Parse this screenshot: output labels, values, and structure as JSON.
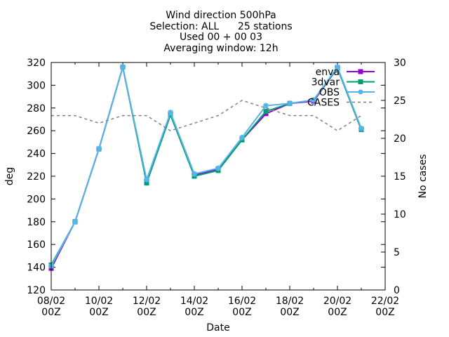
{
  "chart_data": {
    "type": "line",
    "title_lines": [
      "Wind direction 500hPa",
      "Selection: ALL      25 stations",
      "Used 00 + 00 03",
      "Averaging window: 12h"
    ],
    "xlabel": "Date",
    "ylabel": "deg",
    "y2label": "No cases",
    "x_unit": "days from 08/02 00Z",
    "xlim": [
      0,
      14
    ],
    "ylim": [
      120,
      320
    ],
    "y2lim": [
      0,
      30
    ],
    "x_ticks": [
      {
        "x": 0,
        "l1": "08/02",
        "l2": "00Z"
      },
      {
        "x": 2,
        "l1": "10/02",
        "l2": "00Z"
      },
      {
        "x": 4,
        "l1": "12/02",
        "l2": "00Z"
      },
      {
        "x": 6,
        "l1": "14/02",
        "l2": "00Z"
      },
      {
        "x": 8,
        "l1": "16/02",
        "l2": "00Z"
      },
      {
        "x": 10,
        "l1": "18/02",
        "l2": "00Z"
      },
      {
        "x": 12,
        "l1": "20/02",
        "l2": "00Z"
      },
      {
        "x": 14,
        "l1": "22/02",
        "l2": "00Z"
      }
    ],
    "y_ticks": [
      120,
      140,
      160,
      180,
      200,
      220,
      240,
      260,
      280,
      300,
      320
    ],
    "y2_ticks": [
      0,
      5,
      10,
      15,
      20,
      25,
      30
    ],
    "x": [
      0,
      1,
      2,
      3,
      4,
      5,
      6,
      7,
      8,
      9,
      10,
      11,
      12,
      13
    ],
    "series": [
      {
        "name": "enva",
        "color": "#9400d3",
        "marker": "square",
        "dashed": false,
        "axis": "y",
        "values": [
          139,
          180,
          244,
          316,
          215,
          274,
          221,
          226,
          252,
          275,
          284,
          286,
          315,
          261
        ]
      },
      {
        "name": "3dvar",
        "color": "#009e73",
        "marker": "square",
        "dashed": false,
        "axis": "y",
        "values": [
          142,
          180,
          244,
          316,
          214,
          274,
          220,
          225,
          252,
          277,
          284,
          287,
          315,
          261
        ]
      },
      {
        "name": "OBS",
        "color": "#56b4e9",
        "marker": "star",
        "dashed": false,
        "axis": "y",
        "values": [
          141,
          180,
          244,
          316,
          217,
          276,
          222,
          227,
          254,
          282,
          284,
          287,
          316,
          262
        ]
      },
      {
        "name": "CASES",
        "color": "#808080",
        "marker": "none",
        "dashed": true,
        "axis": "y2",
        "values": [
          23,
          23,
          22,
          23,
          23,
          21,
          22,
          23,
          25,
          24,
          23,
          23,
          21,
          23
        ]
      }
    ],
    "grid": false,
    "legend_position": "top-right"
  }
}
